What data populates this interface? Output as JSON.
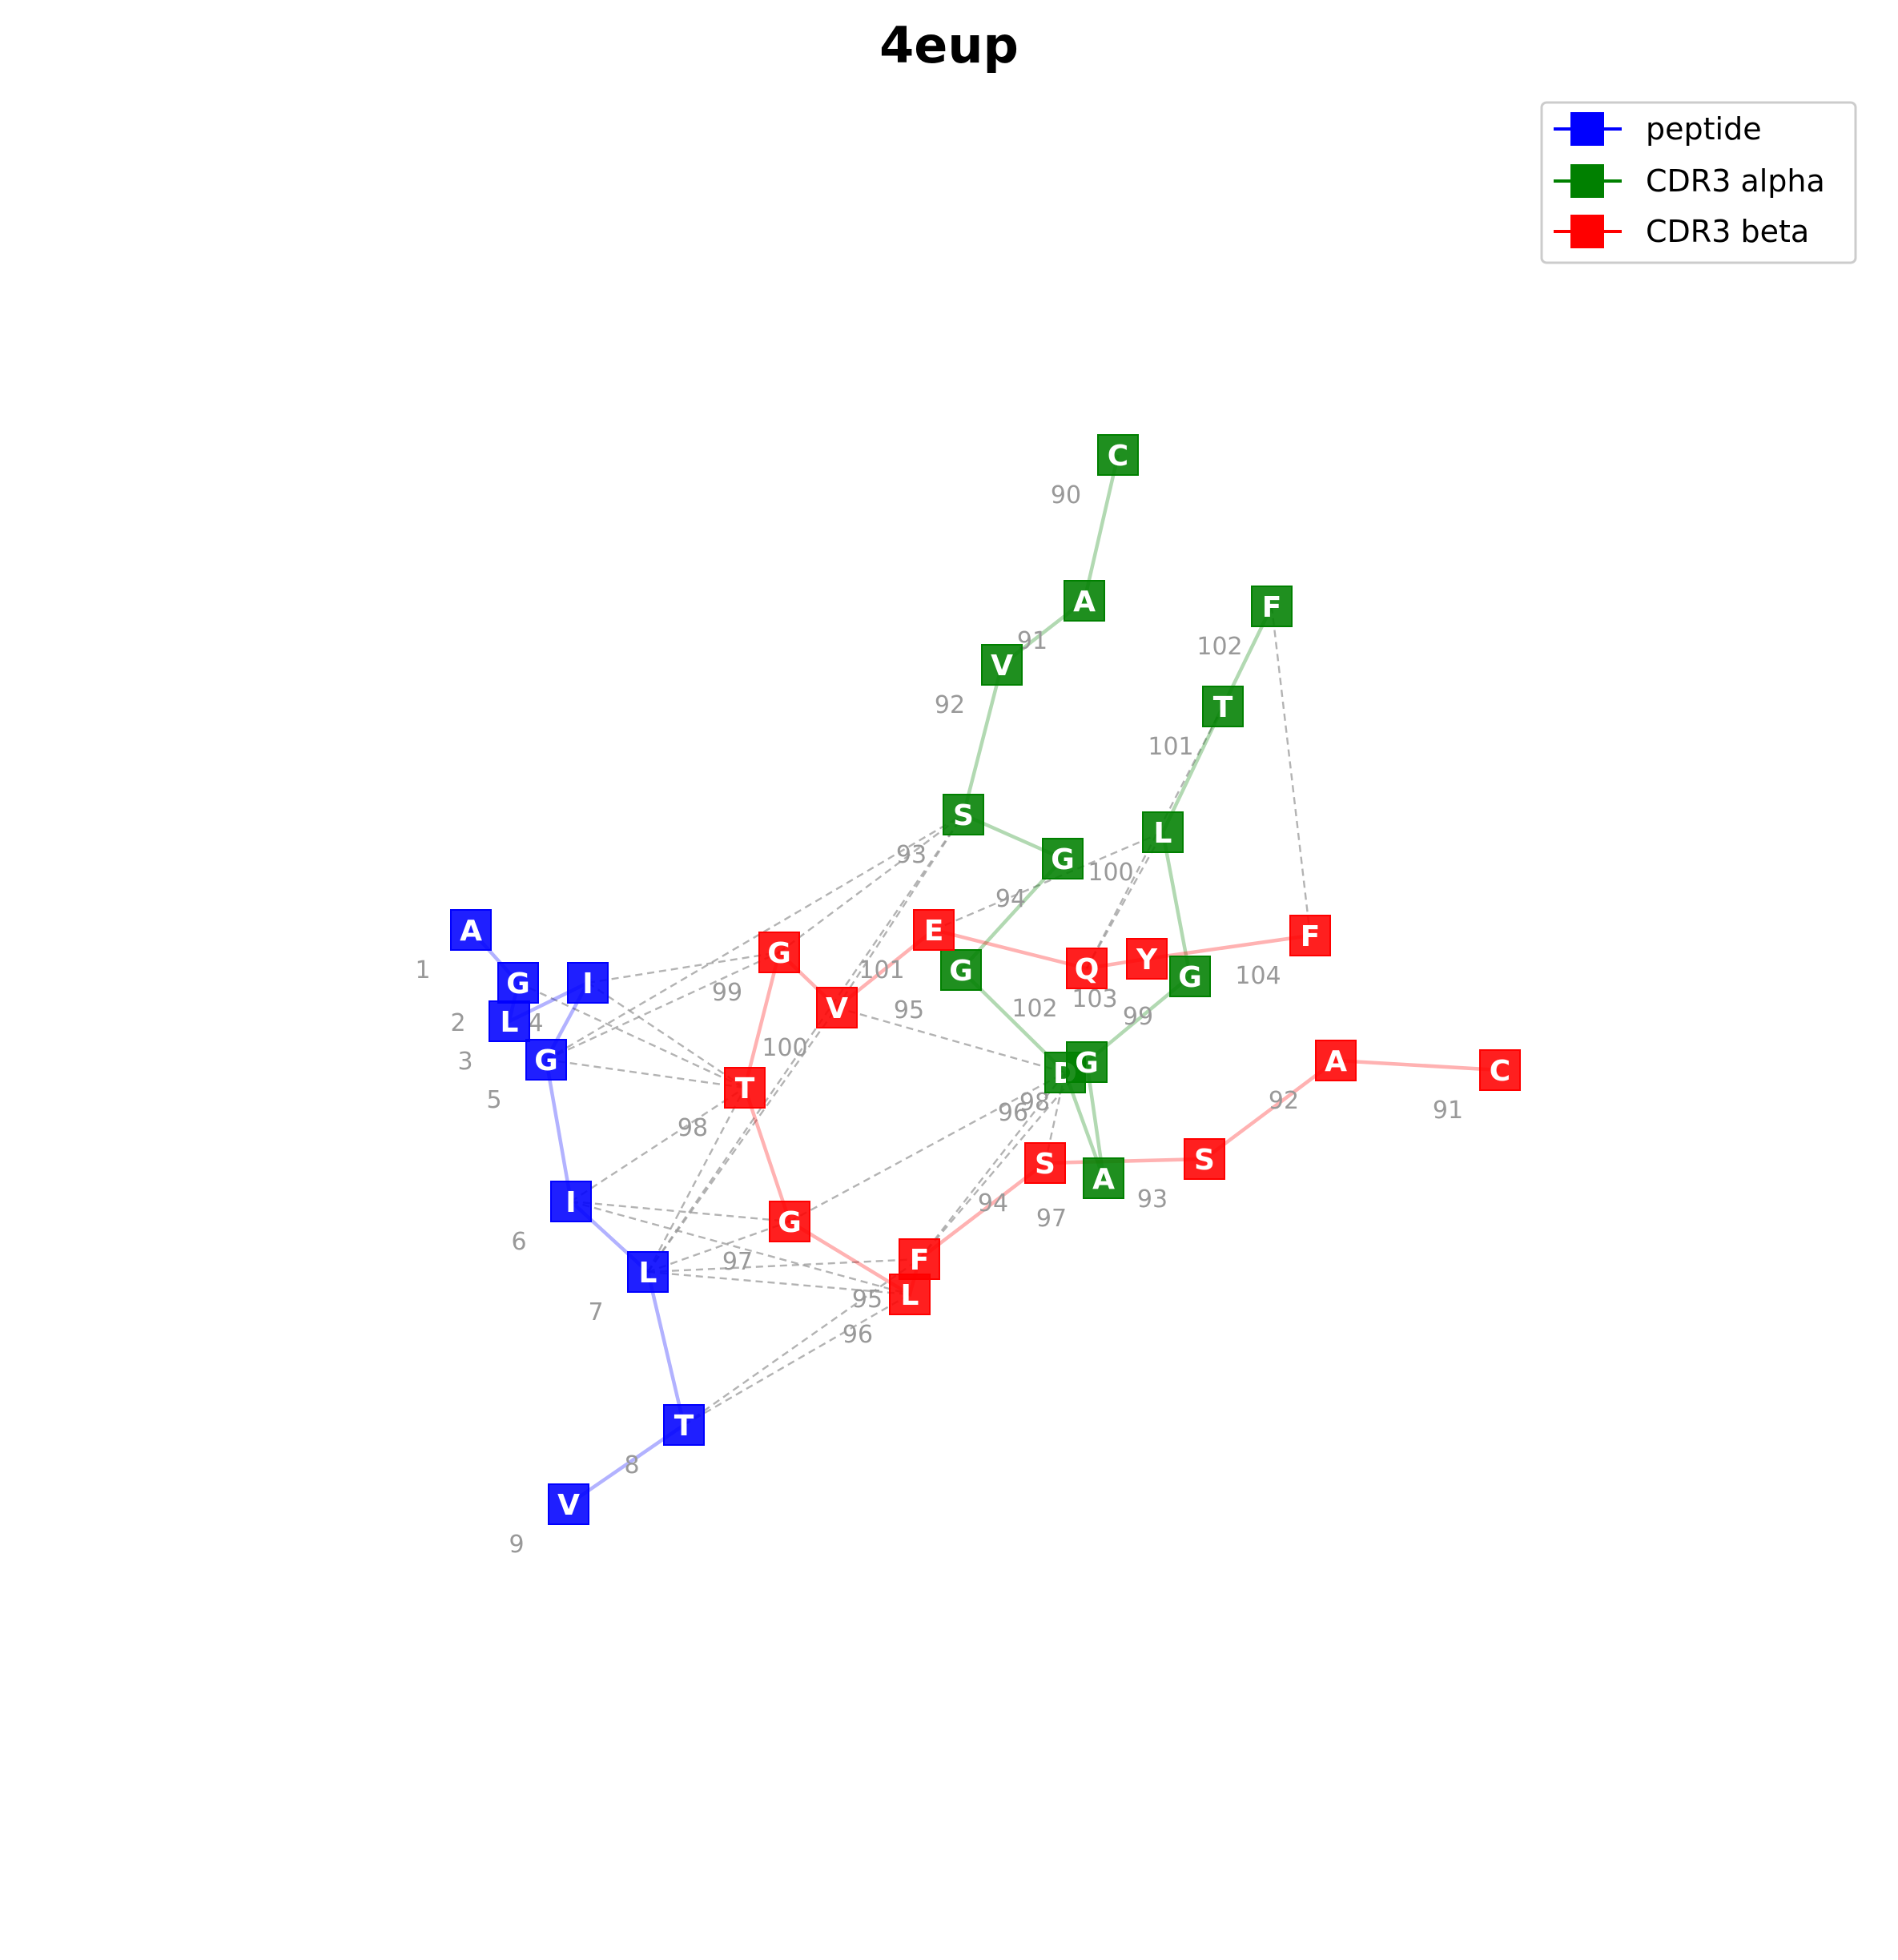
{
  "title": "4eup",
  "legend": [
    {
      "label": "peptide",
      "color": "#0000ff"
    },
    {
      "label": "CDR3 alpha",
      "color": "#008000"
    },
    {
      "label": "CDR3 beta",
      "color": "#ff0000"
    }
  ],
  "chains": [
    {
      "name": "peptide",
      "color": "#0000ff",
      "residues": [
        {
          "aa": "A",
          "num": "1"
        },
        {
          "aa": "G",
          "num": "2"
        },
        {
          "aa": "L",
          "num": "3"
        },
        {
          "aa": "I",
          "num": "4"
        },
        {
          "aa": "G",
          "num": "5"
        },
        {
          "aa": "I",
          "num": "6"
        },
        {
          "aa": "L",
          "num": "7"
        },
        {
          "aa": "T",
          "num": "8"
        },
        {
          "aa": "V",
          "num": "9"
        }
      ]
    },
    {
      "name": "CDR3 alpha",
      "color": "#008000",
      "residues": [
        {
          "aa": "C",
          "num": "90"
        },
        {
          "aa": "A",
          "num": "91"
        },
        {
          "aa": "V",
          "num": "92"
        },
        {
          "aa": "S",
          "num": "93"
        },
        {
          "aa": "G",
          "num": "94"
        },
        {
          "aa": "G",
          "num": "95"
        },
        {
          "aa": "D",
          "num": "96"
        },
        {
          "aa": "A",
          "num": "97"
        },
        {
          "aa": "G",
          "num": "98"
        },
        {
          "aa": "G",
          "num": "99"
        },
        {
          "aa": "L",
          "num": "100"
        },
        {
          "aa": "T",
          "num": "101"
        },
        {
          "aa": "F",
          "num": "102"
        }
      ]
    },
    {
      "name": "CDR3 beta",
      "color": "#ff0000",
      "residues": [
        {
          "aa": "C",
          "num": "91"
        },
        {
          "aa": "A",
          "num": "92"
        },
        {
          "aa": "S",
          "num": "93"
        },
        {
          "aa": "S",
          "num": "94"
        },
        {
          "aa": "F",
          "num": "95"
        },
        {
          "aa": "L",
          "num": "96"
        },
        {
          "aa": "G",
          "num": "97"
        },
        {
          "aa": "T",
          "num": "98"
        },
        {
          "aa": "G",
          "num": "99"
        },
        {
          "aa": "V",
          "num": "100"
        },
        {
          "aa": "E",
          "num": "101"
        },
        {
          "aa": "Q",
          "num": "102"
        },
        {
          "aa": "Y",
          "num": "103"
        },
        {
          "aa": "F",
          "num": "104"
        }
      ]
    }
  ]
}
